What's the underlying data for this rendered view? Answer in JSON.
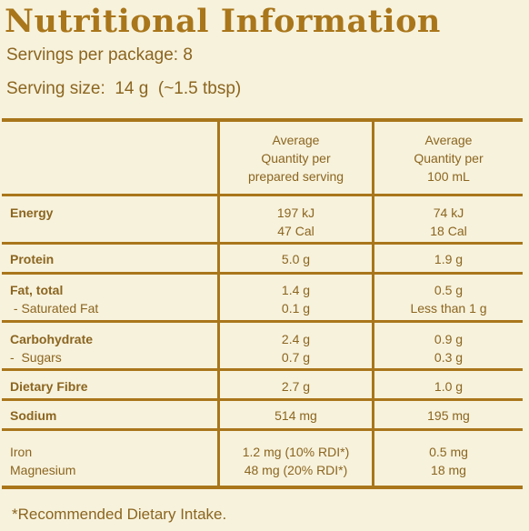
{
  "title": "Nutritional Information",
  "servings_per_package": "Servings per package: 8",
  "serving_size": "Serving size:  14 g  (~1.5 tbsp)",
  "table": {
    "header": {
      "col1": "",
      "col2": [
        "Average",
        "Quantity per",
        "prepared serving"
      ],
      "col3": [
        "Average",
        "Quantity per",
        "100 mL"
      ]
    },
    "rows": [
      {
        "name": "energy",
        "label": [
          "Energy"
        ],
        "per_serving": [
          "197 kJ",
          "47 Cal"
        ],
        "per_100ml": [
          "74 kJ",
          "18 Cal"
        ]
      },
      {
        "name": "protein",
        "label": [
          "Protein"
        ],
        "per_serving": [
          "5.0 g"
        ],
        "per_100ml": [
          "1.9 g"
        ]
      },
      {
        "name": "fat",
        "label": [
          "Fat, total",
          " - Saturated Fat"
        ],
        "per_serving": [
          "1.4 g",
          "0.1 g"
        ],
        "per_100ml": [
          "0.5 g",
          "Less than 1 g"
        ]
      },
      {
        "name": "carbohydrate",
        "label": [
          "Carbohydrate",
          "-  Sugars"
        ],
        "per_serving": [
          "2.4 g",
          "0.7 g"
        ],
        "per_100ml": [
          "0.9 g",
          "0.3 g"
        ]
      },
      {
        "name": "dietary-fibre",
        "label": [
          "Dietary Fibre"
        ],
        "per_serving": [
          "2.7 g"
        ],
        "per_100ml": [
          "1.0 g"
        ]
      },
      {
        "name": "sodium",
        "label": [
          "Sodium"
        ],
        "per_serving": [
          "514 mg"
        ],
        "per_100ml": [
          "195 mg"
        ]
      },
      {
        "name": "minerals",
        "label": [
          "Iron",
          "Magnesium"
        ],
        "per_serving": [
          "1.2 mg (10% RDI*)",
          "48 mg (20% RDI*)"
        ],
        "per_100ml": [
          "0.5 mg",
          "18 mg"
        ]
      }
    ]
  },
  "footnote": "*Recommended Dietary Intake."
}
